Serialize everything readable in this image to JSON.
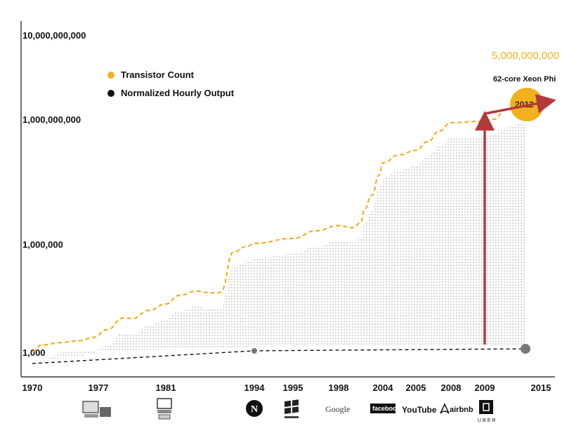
{
  "chart_data": {
    "type": "line",
    "y_scale": "log",
    "ylim": [
      1000,
      10000000000
    ],
    "xlim": [
      1970,
      2015
    ],
    "y_ticks": [
      "10,000,000,000",
      "1,000,000,000",
      "1,000,000",
      "1,000"
    ],
    "x_ticks": [
      "1970",
      "1977",
      "1981",
      "1994",
      "1995",
      "1998",
      "2004",
      "2005",
      "2008",
      "2009",
      "2015"
    ],
    "series": [
      {
        "name": "Transistor Count",
        "color": "#f2b01e",
        "line_style": "dashed",
        "x": [
          1970,
          1971,
          1973,
          1975,
          1976.5,
          1977.5,
          1978.5,
          1979,
          1980,
          1981,
          1983,
          1985.5,
          1987,
          1988.5,
          1989,
          1991,
          1993,
          1994,
          1995,
          1996.5,
          1998,
          2000,
          2001,
          2001.5,
          2002.5,
          2003.5,
          2004,
          2004.5,
          2005,
          2006,
          2007,
          2008,
          2009,
          2010,
          2011
        ],
        "values": [
          1050,
          1600,
          1850,
          2100,
          2600,
          4200,
          9000,
          8700,
          14500,
          22000,
          38000,
          50000,
          46000,
          44000,
          46000,
          620000,
          880000,
          1050000,
          1380000,
          2100000,
          2800000,
          2500000,
          3300000,
          7000000,
          15000000,
          46000000,
          90000000,
          140000000,
          180000000,
          290000000,
          520000000,
          830000000,
          900000000,
          1000000000,
          1200000000
        ]
      },
      {
        "name": "Normalized Hourly Output",
        "color": "#111111",
        "line_style": "dashed",
        "x": [
          1970,
          1994,
          2009
        ],
        "values": [
          1000,
          1100,
          1250
        ]
      }
    ],
    "legend": [
      "Transistor Count",
      "Normalized Hourly Output"
    ],
    "legend_position": "top-left",
    "annotations": [
      {
        "text": "5,000,000,000",
        "color": "#f2b01e"
      },
      {
        "text": "62-core Xeon Phi"
      },
      {
        "text": "2012",
        "badge_color": "#f2b01e"
      }
    ],
    "arrow_color": "#b23a3a"
  },
  "logos": [
    {
      "year": "1970",
      "icon": "desktop-computer-icon"
    },
    {
      "year": "1981",
      "icon": "pc-computer-icon"
    },
    {
      "year": "1994",
      "icon": "netscape-icon"
    },
    {
      "year": "1995",
      "icon": "windows-icon"
    },
    {
      "year": "1998",
      "icon": "google-logo",
      "text": "Google"
    },
    {
      "year": "2004",
      "icon": "facebook-logo",
      "text": "facebook"
    },
    {
      "year": "2005",
      "icon": "youtube-logo",
      "text": "YouTube"
    },
    {
      "year": "2008",
      "icon": "airbnb-logo",
      "text": "airbnb"
    },
    {
      "year": "2009",
      "icon": "uber-logo",
      "text": "UBER"
    }
  ]
}
